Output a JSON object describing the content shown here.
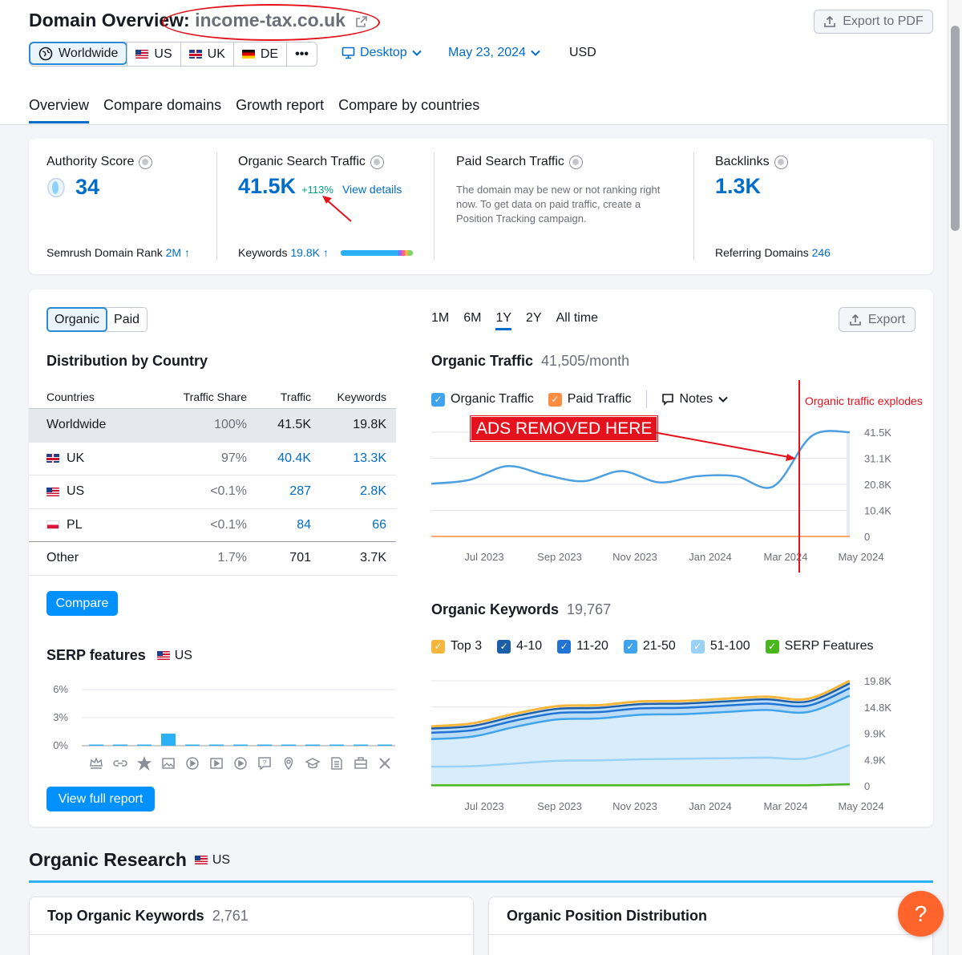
{
  "header": {
    "title_prefix": "Domain Overview:",
    "domain": "income-tax.co.uk",
    "export_pdf": "Export to PDF",
    "regions": [
      {
        "label": "Worldwide"
      },
      {
        "label": "US"
      },
      {
        "label": "UK"
      },
      {
        "label": "DE"
      }
    ],
    "more": "•••",
    "device": "Desktop",
    "date": "May 23, 2024",
    "currency": "USD"
  },
  "tabs": [
    "Overview",
    "Compare domains",
    "Growth report",
    "Compare by countries"
  ],
  "metrics": {
    "authority": {
      "label": "Authority Score",
      "value": "34",
      "footer_label": "Semrush Domain Rank",
      "footer_value": "2M",
      "footer_arrow": "↑"
    },
    "organic": {
      "label": "Organic Search Traffic",
      "value": "41.5K",
      "change": "+113%",
      "link": "View details",
      "footer_label": "Keywords",
      "footer_value": "19.8K",
      "footer_arrow": "↑"
    },
    "paid": {
      "label": "Paid Search Traffic",
      "note": "The domain may be new or not ranking right now. To get data on paid traffic, create a Position Tracking campaign."
    },
    "backlinks": {
      "label": "Backlinks",
      "value": "1.3K",
      "footer_label": "Referring Domains",
      "footer_value": "246"
    }
  },
  "distribution": {
    "toggle": [
      "Organic",
      "Paid"
    ],
    "title": "Distribution by Country",
    "columns": [
      "Countries",
      "Traffic Share",
      "Traffic",
      "Keywords"
    ],
    "rows": [
      {
        "country": "Worldwide",
        "share": "100%",
        "share_frac": 1.0,
        "traffic": "41.5K",
        "keywords": "19.8K"
      },
      {
        "country": "UK",
        "flag": "uk",
        "share": "97%",
        "share_frac": 0.97,
        "traffic": "40.4K",
        "keywords": "13.3K"
      },
      {
        "country": "US",
        "flag": "us",
        "share": "<0.1%",
        "share_frac": 0.0,
        "traffic": "287",
        "keywords": "2.8K"
      },
      {
        "country": "PL",
        "flag": "pl",
        "share": "<0.1%",
        "share_frac": 0.0,
        "traffic": "84",
        "keywords": "66"
      },
      {
        "country": "Other",
        "share": "1.7%",
        "share_frac": 0.0,
        "traffic": "701",
        "keywords": "3.7K"
      }
    ],
    "compare": "Compare"
  },
  "serp": {
    "title": "SERP features",
    "region": "US",
    "button": "View full report",
    "chart_data": {
      "type": "bar",
      "ylabels": [
        "6%",
        "3%",
        "0%"
      ],
      "ylim": [
        0,
        6
      ],
      "icons": [
        "crown-icon",
        "link-icon",
        "star-icon",
        "image-icon",
        "video-icon",
        "video-box-icon",
        "play-icon",
        "faq-icon",
        "local-pack-icon",
        "academic-icon",
        "news-icon",
        "jobs-icon",
        "x-twitter-icon"
      ],
      "values": [
        0,
        0.1,
        0,
        1.3,
        0,
        0,
        0,
        0,
        0.1,
        0,
        0,
        0,
        0
      ]
    }
  },
  "range_tabs": [
    "1M",
    "6M",
    "1Y",
    "2Y",
    "All time"
  ],
  "range_active": "1Y",
  "export": "Export",
  "organic_chart": {
    "title": "Organic Traffic",
    "value": "41,505/month",
    "legend": [
      "Organic Traffic",
      "Paid Traffic"
    ],
    "notes": "Notes",
    "annotation_box": "ADS REMOVED HERE",
    "annotation_right": "Organic traffic explodes",
    "chart_data": {
      "type": "line",
      "x": [
        "Jun 2023",
        "Jul 2023",
        "Aug 2023",
        "Sep 2023",
        "Oct 2023",
        "Nov 2023",
        "Dec 2023",
        "Jan 2024",
        "Feb 2024",
        "Mar 2024",
        "Apr 2024",
        "May 2024"
      ],
      "xticks": [
        "Jul 2023",
        "Sep 2023",
        "Nov 2023",
        "Jan 2024",
        "Mar 2024",
        "May 2024"
      ],
      "yticks": [
        "41.5K",
        "31.1K",
        "20.8K",
        "10.4K",
        "0"
      ],
      "ylim": [
        0,
        41500
      ],
      "series": [
        {
          "name": "Organic Traffic",
          "color": "#4c9fe0",
          "values": [
            21000,
            22500,
            28000,
            24500,
            22000,
            26000,
            21500,
            24000,
            24000,
            20000,
            40000,
            41500
          ]
        },
        {
          "name": "Paid Traffic",
          "color": "#ff8c43",
          "values": [
            0,
            0,
            0,
            0,
            0,
            0,
            0,
            0,
            0,
            0,
            0,
            0
          ]
        }
      ]
    }
  },
  "keywords_chart": {
    "title": "Organic Keywords",
    "value": "19,767",
    "legend": [
      {
        "label": "Top 3",
        "color": "#f5b63b"
      },
      {
        "label": "4-10",
        "color": "#1c5ea8"
      },
      {
        "label": "11-20",
        "color": "#2174d4"
      },
      {
        "label": "21-50",
        "color": "#3fa4ec"
      },
      {
        "label": "51-100",
        "color": "#9ad1f7"
      },
      {
        "label": "SERP Features",
        "color": "#4ab61d"
      }
    ],
    "chart_data": {
      "type": "area",
      "xticks": [
        "Jul 2023",
        "Sep 2023",
        "Nov 2023",
        "Jan 2024",
        "Mar 2024",
        "May 2024"
      ],
      "yticks": [
        "19.8K",
        "14.8K",
        "9.9K",
        "4.9K",
        "0"
      ],
      "ylim": [
        0,
        19800
      ],
      "series": [
        {
          "name": "Top 3",
          "values": [
            11200,
            11800,
            13600,
            15000,
            15200,
            15900,
            16000,
            16400,
            16800,
            16400,
            19800
          ]
        },
        {
          "name": "4-10",
          "values": [
            10800,
            11300,
            13100,
            14500,
            14700,
            15400,
            15500,
            15900,
            16300,
            15900,
            19300
          ]
        },
        {
          "name": "11-20",
          "values": [
            10000,
            10500,
            12300,
            13700,
            13900,
            14600,
            14700,
            15100,
            15500,
            15100,
            18400
          ]
        },
        {
          "name": "21-50",
          "values": [
            8800,
            9300,
            11100,
            12500,
            12700,
            13400,
            13500,
            13900,
            14300,
            13900,
            17000
          ]
        },
        {
          "name": "51-100",
          "values": [
            3600,
            3700,
            4200,
            4700,
            4800,
            5000,
            5100,
            5200,
            5300,
            5200,
            7700
          ]
        },
        {
          "name": "SERP Features",
          "values": [
            100,
            100,
            100,
            100,
            100,
            100,
            100,
            100,
            100,
            100,
            300
          ]
        }
      ]
    }
  },
  "organic_research": {
    "title": "Organic Research",
    "region": "US"
  },
  "bottom_cards": {
    "left_title": "Top Organic Keywords",
    "left_value": "2,761",
    "right_title": "Organic Position Distribution"
  },
  "help": "?"
}
